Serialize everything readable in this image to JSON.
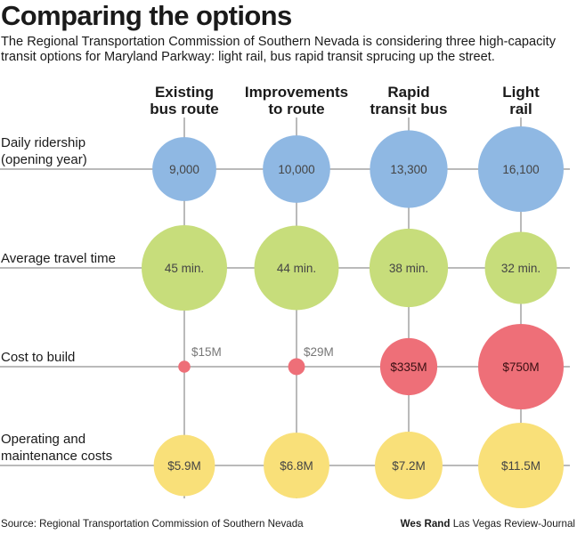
{
  "header": {
    "title": "Comparing the options",
    "subtitle": "The Regional Transportation Commission of Southern Nevada is considering three high-capacity transit options for Maryland Parkway: light rail, bus rapid transit sprucing up the street."
  },
  "chart_data": {
    "type": "bubble-matrix",
    "columns": [
      {
        "lines": [
          "Existing",
          "bus route"
        ]
      },
      {
        "lines": [
          "Improvements",
          "to route"
        ]
      },
      {
        "lines": [
          "Rapid",
          "transit bus"
        ]
      },
      {
        "lines": [
          "Light",
          "rail"
        ]
      }
    ],
    "rows": [
      {
        "lines": [
          "Daily ridership",
          "(opening year)"
        ],
        "color": "#8fb8e3",
        "labels_outside": false,
        "values": [
          9000,
          10000,
          13300,
          16100
        ],
        "labels": [
          "9,000",
          "10,000",
          "13,300",
          "16,100"
        ]
      },
      {
        "lines": [
          "Average travel time"
        ],
        "color": "#c7dd7b",
        "labels_outside": false,
        "values": [
          45,
          44,
          38,
          32
        ],
        "labels": [
          "45 min.",
          "44 min.",
          "38 min.",
          "32 min."
        ]
      },
      {
        "lines": [
          "Cost to build"
        ],
        "color": "#ee6f78",
        "labels_outside": true,
        "values": [
          15,
          29,
          335,
          750
        ],
        "labels": [
          "$15M",
          "$29M",
          "$335M",
          "$750M"
        ]
      },
      {
        "lines": [
          "Operating and",
          "maintenance costs"
        ],
        "color": "#f9e079",
        "labels_outside": false,
        "values": [
          5.9,
          6.8,
          7.2,
          11.5
        ],
        "labels": [
          "$5.9M",
          "$6.8M",
          "$7.2M",
          "$11.5M"
        ]
      }
    ]
  },
  "footer": {
    "source": "Source: Regional Transportation Commission of Southern Nevada",
    "credit_name": "Wes Rand",
    "credit_org": "Las Vegas Review-Journal"
  }
}
